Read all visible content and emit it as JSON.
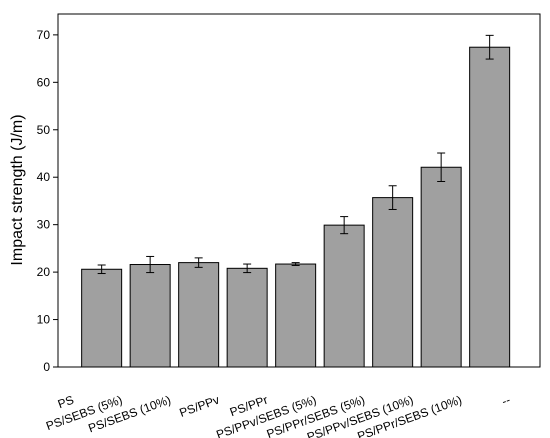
{
  "chart_data": {
    "type": "bar",
    "ylabel": "Impact strength (J/m)",
    "categories": [
      "PS",
      "PS/SEBS (5%)",
      "PS/SEBS (10%)",
      "PS/PPv",
      "PS/PPr",
      "PS/PPv/SEBS (5%)",
      "PS/PPr/SEBS (5%)",
      "PS/PPv/SEBS (10%)",
      "PS/PPr/SEBS (10%)",
      "--"
    ],
    "values": [
      20.6,
      21.6,
      22.0,
      20.8,
      21.7,
      29.9,
      35.7,
      42.1,
      67.4,
      null
    ],
    "errors": [
      0.9,
      1.7,
      1.0,
      0.9,
      0.3,
      1.8,
      2.5,
      3.0,
      2.5,
      null
    ],
    "color": "#a0a0a0",
    "ylim": [
      0,
      74.4
    ],
    "yticks": [
      0,
      10,
      20,
      30,
      40,
      50,
      60,
      70
    ],
    "grid": false
  }
}
